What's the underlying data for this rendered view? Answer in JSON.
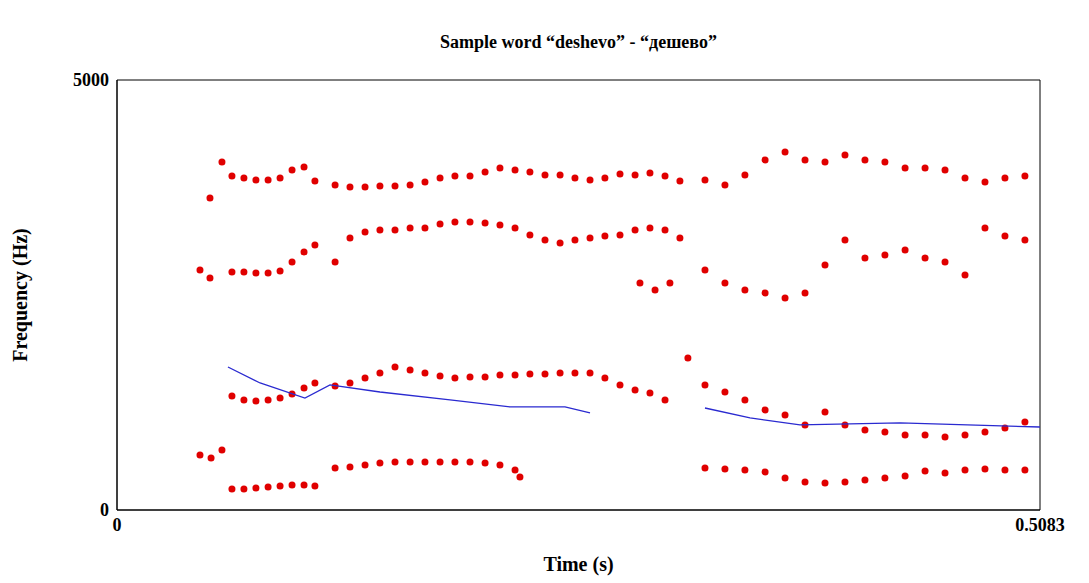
{
  "chart_data": {
    "type": "scatter",
    "title": "Sample word “deshevo” - “дешево”",
    "x_label": "Time (s)",
    "y_label": "Frequency (Hz)",
    "xlim": [
      0,
      0.5083
    ],
    "xticks": [
      0,
      0.5083
    ],
    "ylim": [
      0,
      5000
    ],
    "yticks": [
      0,
      5000
    ],
    "grid": false,
    "series": [
      {
        "type": "scatter",
        "color": "#e00000",
        "marker": "circle",
        "x": [
          0.0457,
          0.0518,
          0.0578,
          0.0633,
          0.0699,
          0.0765,
          0.0832,
          0.0898,
          0.0964,
          0.103,
          0.109,
          0.1201,
          0.1283,
          0.1366,
          0.1448,
          0.1531,
          0.1614,
          0.1696,
          0.1779,
          0.1861,
          0.1944,
          0.2027,
          0.2109,
          0.2192,
          0.2219,
          0.3238,
          0.3348,
          0.3458,
          0.3569,
          0.3679,
          0.3789,
          0.3899,
          0.4009,
          0.4119,
          0.4229,
          0.434,
          0.445,
          0.456,
          0.467,
          0.478,
          0.489,
          0.5
        ],
        "values": [
          640,
          605,
          698,
          244,
          244,
          256,
          267,
          279,
          291,
          291,
          279,
          488,
          500,
          523,
          547,
          558,
          558,
          558,
          558,
          558,
          558,
          547,
          523,
          465,
          384,
          488,
          477,
          465,
          442,
          372,
          326,
          314,
          326,
          349,
          372,
          395,
          454,
          430,
          465,
          477,
          465,
          465
        ]
      },
      {
        "type": "scatter",
        "color": "#e00000",
        "marker": "circle",
        "x": [
          0.0633,
          0.0699,
          0.0765,
          0.0832,
          0.0898,
          0.0964,
          0.103,
          0.109,
          0.1201,
          0.1283,
          0.1366,
          0.1448,
          0.1531,
          0.1614,
          0.1696,
          0.1779,
          0.1861,
          0.1944,
          0.2027,
          0.2109,
          0.2192,
          0.2274,
          0.2357,
          0.244,
          0.2522,
          0.2605,
          0.2687,
          0.277,
          0.2853,
          0.2935,
          0.3018,
          0.3144,
          0.3238,
          0.3348,
          0.3458,
          0.3569,
          0.3679,
          0.3789,
          0.3899,
          0.4009,
          0.4119,
          0.4229,
          0.434,
          0.445,
          0.456,
          0.467,
          0.478,
          0.489,
          0.5
        ],
        "values": [
          1326,
          1279,
          1268,
          1279,
          1303,
          1349,
          1419,
          1477,
          1442,
          1477,
          1535,
          1593,
          1663,
          1628,
          1593,
          1558,
          1535,
          1547,
          1547,
          1570,
          1570,
          1582,
          1582,
          1593,
          1593,
          1593,
          1535,
          1454,
          1396,
          1361,
          1279,
          1768,
          1454,
          1372,
          1279,
          1163,
          1105,
          989,
          1140,
          989,
          930,
          907,
          872,
          872,
          849,
          872,
          907,
          954,
          1023
        ]
      },
      {
        "type": "scatter",
        "color": "#e00000",
        "marker": "circle",
        "x": [
          0.0457,
          0.0512,
          0.0633,
          0.0699,
          0.0765,
          0.0832,
          0.0898,
          0.0964,
          0.103,
          0.109,
          0.1201,
          0.1283,
          0.1366,
          0.1448,
          0.1531,
          0.1614,
          0.1696,
          0.1779,
          0.1861,
          0.1944,
          0.2027,
          0.2109,
          0.2192,
          0.2274,
          0.2357,
          0.244,
          0.2522,
          0.2605,
          0.2687,
          0.277,
          0.2853,
          0.2935,
          0.3018,
          0.31,
          0.288,
          0.2963,
          0.3045,
          0.3238,
          0.3348,
          0.3458,
          0.3569,
          0.3679,
          0.3789,
          0.3899,
          0.4009,
          0.4119,
          0.4229,
          0.434,
          0.445,
          0.456,
          0.467,
          0.478,
          0.489,
          0.5
        ],
        "values": [
          2791,
          2698,
          2768,
          2768,
          2756,
          2756,
          2780,
          2884,
          3001,
          3082,
          2884,
          3163,
          3233,
          3256,
          3256,
          3280,
          3280,
          3326,
          3349,
          3349,
          3338,
          3315,
          3280,
          3198,
          3140,
          3105,
          3140,
          3163,
          3187,
          3198,
          3256,
          3280,
          3256,
          3163,
          2640,
          2559,
          2640,
          2791,
          2640,
          2559,
          2524,
          2466,
          2524,
          2849,
          3140,
          2931,
          2966,
          3024,
          2931,
          2884,
          2733,
          3280,
          3187,
          3140
        ]
      },
      {
        "type": "scatter",
        "color": "#e00000",
        "marker": "circle",
        "x": [
          0.0512,
          0.0578,
          0.0633,
          0.0699,
          0.0765,
          0.0832,
          0.0898,
          0.0964,
          0.103,
          0.109,
          0.1201,
          0.1283,
          0.1366,
          0.1448,
          0.1531,
          0.1614,
          0.1696,
          0.1779,
          0.1861,
          0.1944,
          0.2027,
          0.2109,
          0.2192,
          0.2274,
          0.2357,
          0.244,
          0.2522,
          0.2605,
          0.2687,
          0.277,
          0.2853,
          0.2935,
          0.3018,
          0.31,
          0.3238,
          0.3348,
          0.3458,
          0.3569,
          0.3679,
          0.3789,
          0.3899,
          0.4009,
          0.4119,
          0.4229,
          0.434,
          0.445,
          0.456,
          0.467,
          0.478,
          0.489,
          0.5
        ],
        "values": [
          3629,
          4047,
          3884,
          3861,
          3838,
          3838,
          3861,
          3954,
          3989,
          3826,
          3780,
          3756,
          3756,
          3768,
          3768,
          3780,
          3815,
          3861,
          3884,
          3884,
          3931,
          3977,
          3954,
          3931,
          3896,
          3896,
          3861,
          3838,
          3861,
          3908,
          3896,
          3919,
          3884,
          3826,
          3838,
          3780,
          3896,
          4071,
          4164,
          4071,
          4047,
          4129,
          4071,
          4047,
          3977,
          3977,
          3954,
          3861,
          3815,
          3861,
          3884
        ]
      },
      {
        "type": "line",
        "color": "#2a2ad0",
        "line_style": "solid",
        "x": [
          0.0611,
          0.0788,
          0.1035,
          0.1173,
          0.1448,
          0.1834,
          0.2164,
          0.2467,
          0.2605,
          0.2935,
          0.3238,
          0.3486,
          0.3761,
          0.4312,
          0.5083
        ],
        "values": [
          1663,
          1477,
          1302,
          1454,
          1372,
          1280,
          1198,
          1198,
          1128,
          null,
          1186,
          1070,
          989,
          1012,
          965
        ]
      }
    ]
  }
}
